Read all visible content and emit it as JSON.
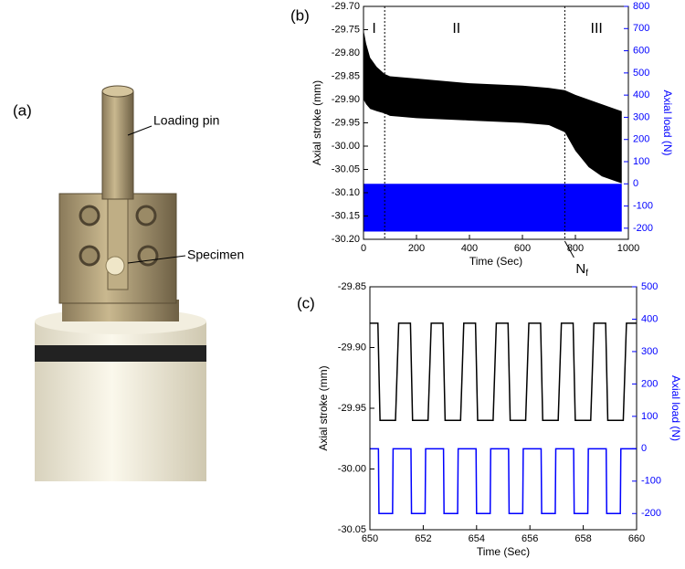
{
  "photo": {
    "label": "(a)",
    "annotations": [
      "Loading pin",
      "Specimen"
    ]
  },
  "chart_data": [
    {
      "type": "band",
      "panel": "(b)",
      "xlabel": "Time (Sec)",
      "ylabel": "Axial stroke (mm)",
      "y2label": "Axial load (N)",
      "xlim": [
        0,
        1000
      ],
      "xticks": [
        0,
        200,
        400,
        600,
        800,
        1000
      ],
      "ylim": [
        -30.2,
        -29.7
      ],
      "yticks": [
        {
          "value": -29.7,
          "label": "-29.70"
        },
        -29.75,
        {
          "value": -29.8,
          "label": "-29.80"
        },
        -29.85,
        {
          "value": -29.9,
          "label": "-29.90"
        },
        -29.95,
        {
          "value": -30,
          "label": "-30.00"
        },
        -30.05,
        {
          "value": -30.1,
          "label": "-30.10"
        },
        -30.15,
        {
          "value": -30.2,
          "label": "-30.20"
        }
      ],
      "y2lim": [
        -250,
        800
      ],
      "y2ticks": [
        -200,
        -100,
        0,
        100,
        200,
        300,
        400,
        500,
        600,
        700,
        800
      ],
      "vlines": [
        80,
        760
      ],
      "regions": [
        "I",
        "II",
        "III"
      ],
      "annotation": {
        "text": "N",
        "sub": "f"
      },
      "series": [
        {
          "color": "#000000",
          "x": [
            0,
            10,
            25,
            50,
            80,
            100,
            200,
            400,
            600,
            700,
            760,
            800,
            850,
            900,
            950,
            975
          ],
          "upper": [
            -29.75,
            -29.78,
            -29.81,
            -29.83,
            -29.845,
            -29.85,
            -29.855,
            -29.865,
            -29.87,
            -29.875,
            -29.88,
            -29.89,
            -29.9,
            -29.91,
            -29.92,
            -29.925
          ],
          "lower": [
            -29.9,
            -29.91,
            -29.92,
            -29.925,
            -29.93,
            -29.935,
            -29.94,
            -29.945,
            -29.95,
            -29.955,
            -29.97,
            -30.01,
            -30.045,
            -30.065,
            -30.075,
            -30.08
          ]
        },
        {
          "color": "#0000ff",
          "axis": "y2",
          "x": [
            0,
            975
          ],
          "upper": [
            0,
            0
          ],
          "lower": [
            -215,
            -215
          ]
        }
      ]
    },
    {
      "type": "line",
      "panel": "(c)",
      "xlabel": "Time (Sec)",
      "ylabel": "Axial stroke (mm)",
      "y2label": "Axial load (N)",
      "xlim": [
        650,
        660
      ],
      "xticks": [
        650,
        652,
        654,
        656,
        658,
        660
      ],
      "ylim": [
        -30.05,
        -29.85
      ],
      "yticks": [
        -29.85,
        {
          "value": -29.9,
          "label": "-29.90"
        },
        -29.95,
        {
          "value": -30,
          "label": "-30.00"
        },
        -30.05
      ],
      "y2lim": [
        -250,
        500
      ],
      "y2ticks": [
        -200,
        -100,
        0,
        100,
        200,
        300,
        400,
        500
      ],
      "series": [
        {
          "color": "#000000",
          "x": [
            650,
            650.3,
            650.38,
            650.96,
            651.08,
            651.52,
            651.6,
            652.18,
            652.3,
            652.74,
            652.82,
            653.4,
            653.52,
            653.96,
            654.04,
            654.62,
            654.74,
            655.18,
            655.26,
            655.84,
            655.96,
            656.4,
            656.48,
            657.06,
            657.18,
            657.62,
            657.7,
            658.28,
            658.4,
            658.84,
            658.92,
            659.5,
            659.62,
            660
          ],
          "values": [
            -29.88,
            -29.88,
            -29.96,
            -29.96,
            -29.88,
            -29.88,
            -29.96,
            -29.96,
            -29.88,
            -29.88,
            -29.96,
            -29.96,
            -29.88,
            -29.88,
            -29.96,
            -29.96,
            -29.88,
            -29.88,
            -29.96,
            -29.96,
            -29.88,
            -29.88,
            -29.96,
            -29.96,
            -29.88,
            -29.88,
            -29.96,
            -29.96,
            -29.88,
            -29.88,
            -29.96,
            -29.96,
            -29.88,
            -29.88
          ]
        },
        {
          "color": "#0000ff",
          "axis": "y2",
          "x": [
            650,
            650.32,
            650.34,
            650.85,
            650.87,
            651.54,
            651.56,
            652.07,
            652.09,
            652.76,
            652.78,
            653.29,
            653.31,
            653.98,
            654,
            654.51,
            654.53,
            655.2,
            655.22,
            655.73,
            655.75,
            656.42,
            656.44,
            656.95,
            656.97,
            657.64,
            657.66,
            658.17,
            658.19,
            658.86,
            658.88,
            659.39,
            659.41,
            660
          ],
          "values": [
            0,
            0,
            -200,
            -200,
            0,
            0,
            -200,
            -200,
            0,
            0,
            -200,
            -200,
            0,
            0,
            -200,
            -200,
            0,
            0,
            -200,
            -200,
            0,
            0,
            -200,
            -200,
            0,
            0,
            -200,
            -200,
            0,
            0,
            -200,
            -200,
            0,
            0
          ]
        }
      ]
    }
  ]
}
